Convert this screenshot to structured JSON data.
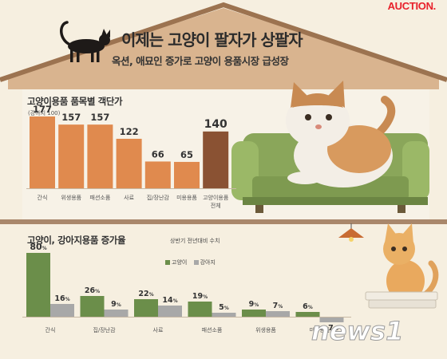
{
  "brand": "AUCTION.",
  "header": {
    "title": "이제는 고양이 팔자가 상팔자",
    "subtitle": "옥션, 애묘인 증가로 고양이 용품시장  급성장"
  },
  "colors": {
    "background": "#f6efe0",
    "roof": "#d9b48f",
    "bar_orange": "#e08a4e",
    "bar_brown": "#8a5233",
    "bar_green": "#6b8e4a",
    "bar_gray": "#a8a8a8",
    "sofa": "#8aa65a",
    "floor": "#a9876b"
  },
  "chart_data": [
    {
      "type": "bar",
      "title": "고양이용품 품목별 객단가",
      "note": "(강아지 100)",
      "categories": [
        "간식",
        "위생용품",
        "패션소품",
        "사료",
        "집/장난감",
        "미용용품",
        "고양이용품 전체"
      ],
      "category_lines": [
        [
          "간식"
        ],
        [
          "위생용품"
        ],
        [
          "패션소품"
        ],
        [
          "사료"
        ],
        [
          "집/장난감"
        ],
        [
          "미용용품"
        ],
        [
          "고양이용품",
          "전체"
        ]
      ],
      "values": [
        177,
        157,
        157,
        122,
        66,
        65,
        140
      ],
      "highlight_index": 6,
      "ylim": [
        0,
        200
      ]
    },
    {
      "type": "bar",
      "title": "고양이, 강아지용품 증가율",
      "note": "상반기 전년대비 수치",
      "categories": [
        "간식",
        "집/장난감",
        "사료",
        "패션소품",
        "위생용품",
        "미용용품"
      ],
      "series": [
        {
          "name": "고양이",
          "values": [
            80,
            26,
            22,
            19,
            9,
            6
          ]
        },
        {
          "name": "강아지",
          "values": [
            16,
            9,
            14,
            5,
            7,
            -7
          ]
        }
      ],
      "unit": "%",
      "ylim": [
        -10,
        85
      ]
    }
  ],
  "watermark": "news1"
}
